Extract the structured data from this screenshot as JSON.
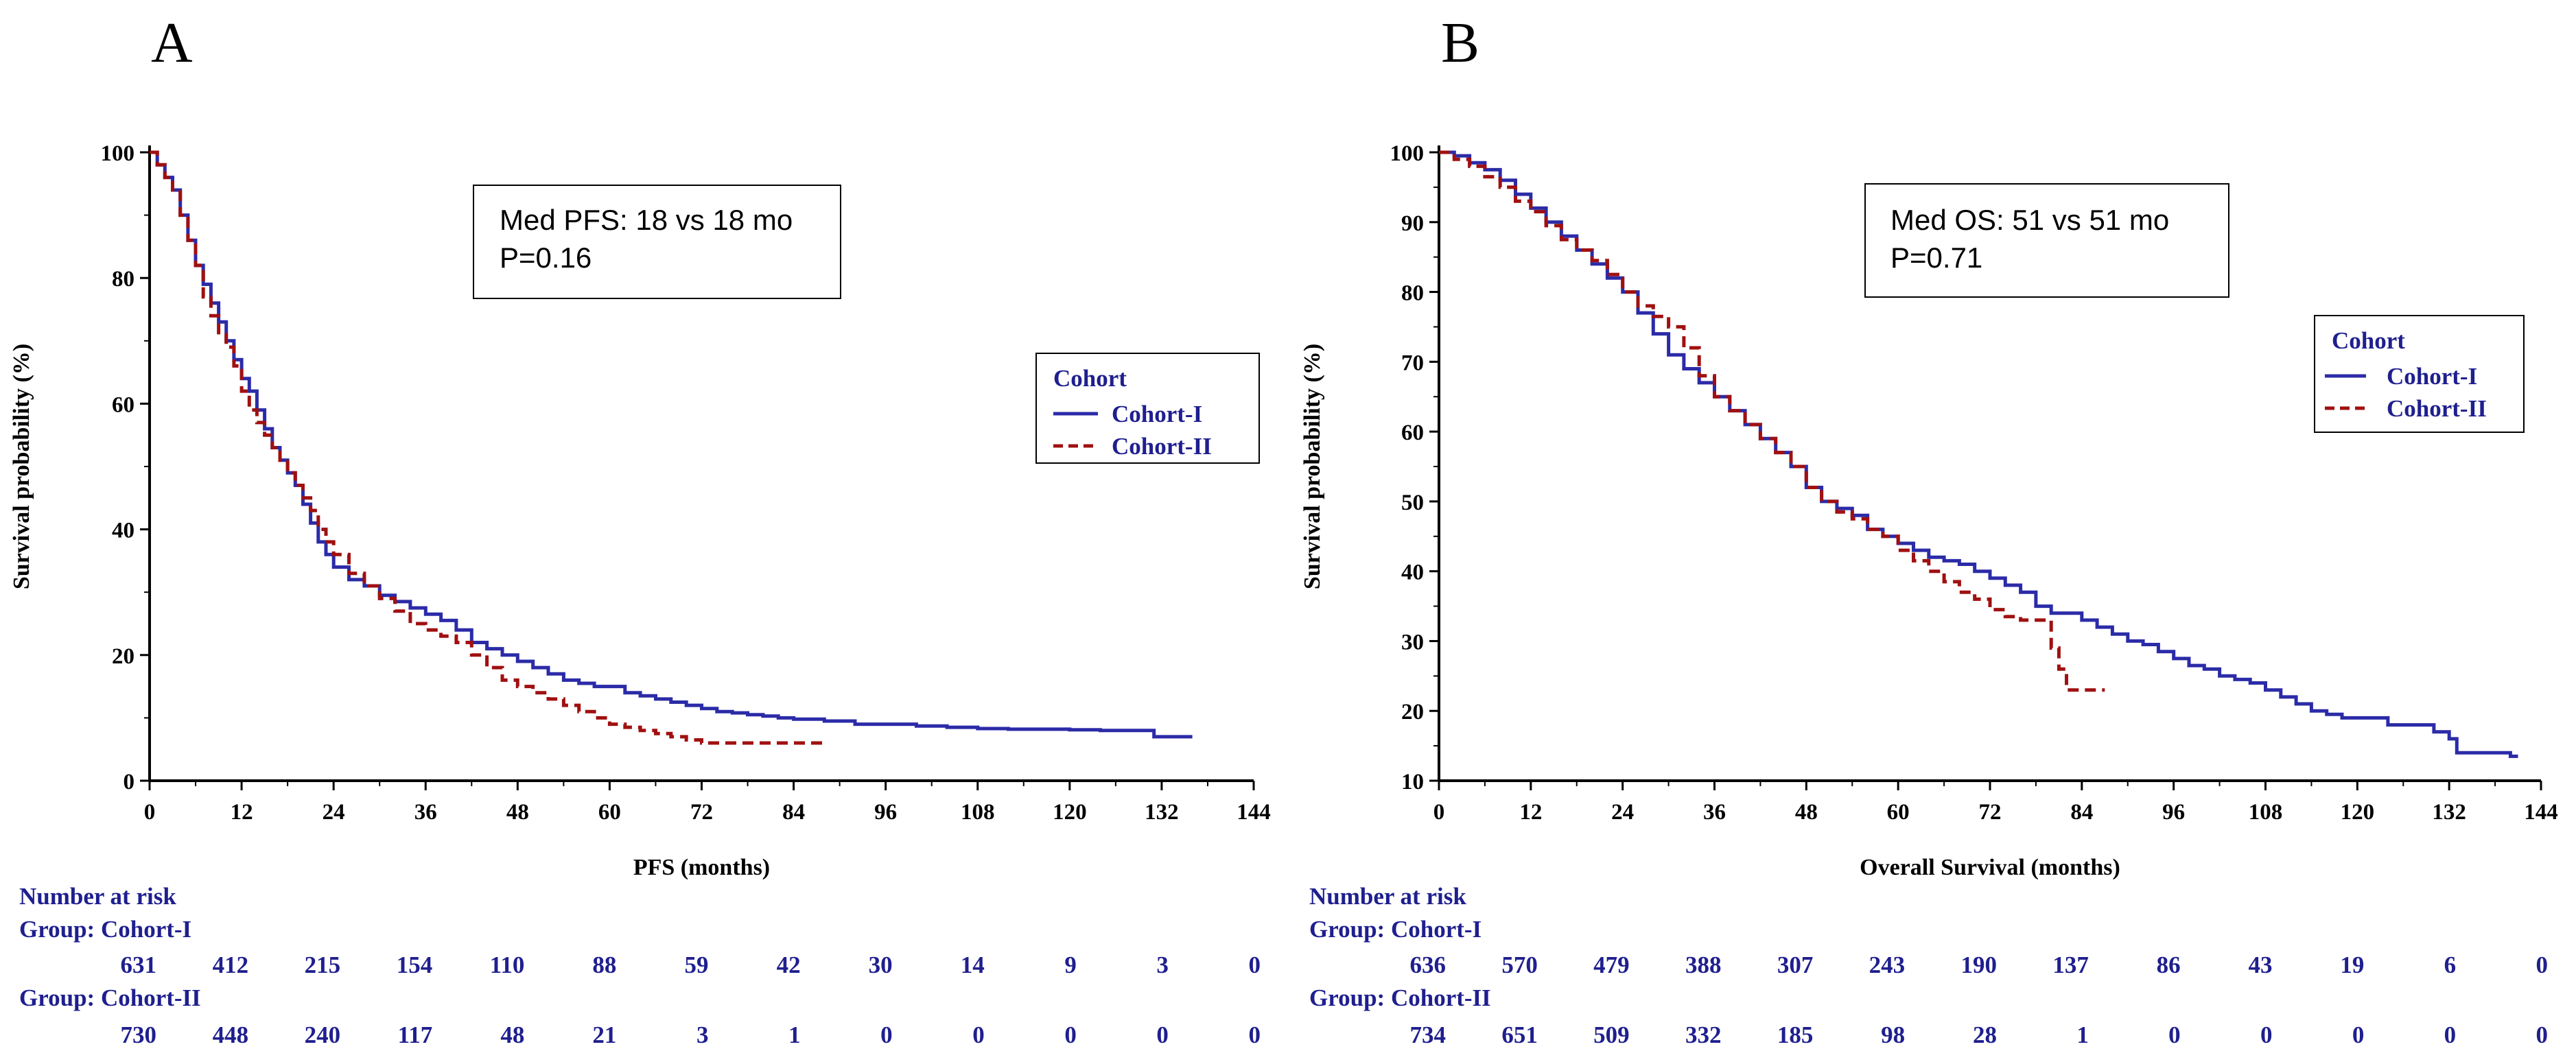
{
  "colors": {
    "cohort1": "#2b2ba8",
    "cohort2": "#a01010",
    "axis": "#000000",
    "risk_text": "#1f1f8f"
  },
  "chart_data": [
    {
      "panel": "A",
      "type": "line",
      "subtype": "kaplan-meier",
      "title": "",
      "xlabel": "PFS (months)",
      "ylabel": "Survival probability (%)",
      "xlim": [
        0,
        144
      ],
      "ylim": [
        0,
        100
      ],
      "xticks": [
        0,
        12,
        24,
        36,
        48,
        60,
        72,
        84,
        96,
        108,
        120,
        132,
        144
      ],
      "yticks": [
        0,
        20,
        40,
        60,
        80,
        100
      ],
      "annotation": {
        "lines": [
          "Med PFS: 18 vs 18 mo",
          "P=0.16"
        ]
      },
      "legend": {
        "title": "Cohort",
        "position": "right",
        "entries": [
          "Cohort-I",
          "Cohort-II"
        ]
      },
      "series": [
        {
          "name": "Cohort-I",
          "style": "solid",
          "x": [
            0,
            1,
            2,
            3,
            4,
            5,
            6,
            7,
            8,
            9,
            10,
            11,
            12,
            13,
            14,
            15,
            16,
            17,
            18,
            19,
            20,
            21,
            22,
            23,
            24,
            26,
            28,
            30,
            32,
            34,
            36,
            38,
            40,
            42,
            44,
            46,
            48,
            50,
            52,
            54,
            56,
            58,
            60,
            62,
            64,
            66,
            68,
            70,
            72,
            74,
            76,
            78,
            80,
            82,
            84,
            88,
            92,
            96,
            100,
            104,
            108,
            112,
            116,
            120,
            124,
            128,
            130,
            131,
            136
          ],
          "y": [
            100,
            98,
            96,
            94,
            90,
            86,
            82,
            79,
            76,
            73,
            70,
            67,
            64,
            62,
            59,
            56,
            53,
            51,
            49,
            47,
            44,
            41,
            38,
            36,
            34,
            32,
            31,
            29.5,
            28.5,
            27.5,
            26.5,
            25.5,
            24,
            22,
            21,
            20,
            19,
            18,
            17,
            16,
            15.5,
            15,
            15,
            14,
            13.5,
            13,
            12.5,
            12,
            11.5,
            11,
            10.8,
            10.5,
            10.3,
            10,
            9.8,
            9.5,
            9,
            9,
            8.7,
            8.5,
            8.3,
            8.2,
            8.2,
            8.1,
            8,
            8,
            8,
            7,
            7
          ]
        },
        {
          "name": "Cohort-II",
          "style": "dashed",
          "x": [
            0,
            1,
            2,
            3,
            4,
            5,
            6,
            7,
            8,
            9,
            10,
            11,
            12,
            13,
            14,
            15,
            16,
            17,
            18,
            19,
            20,
            21,
            22,
            23,
            24,
            26,
            28,
            30,
            32,
            34,
            36,
            38,
            40,
            42,
            44,
            46,
            48,
            50,
            52,
            54,
            56,
            58,
            60,
            62,
            64,
            66,
            68,
            70,
            72,
            76,
            80,
            84,
            88
          ],
          "y": [
            100,
            98,
            96,
            94,
            90,
            86,
            82,
            77,
            74,
            71,
            69,
            66,
            62,
            59,
            57,
            55,
            53,
            51,
            49,
            47,
            45,
            43,
            40,
            38,
            36,
            33,
            31,
            29,
            27,
            25,
            24,
            23,
            22,
            20,
            18,
            16,
            15,
            14,
            13,
            12,
            11,
            10,
            9,
            8.5,
            8,
            7.5,
            7,
            6.5,
            6,
            6,
            6,
            6,
            6
          ]
        }
      ],
      "risk_table": {
        "title": "Number at risk",
        "groups": [
          {
            "label": "Group: Cohort-I",
            "values": [
              631,
              412,
              215,
              154,
              110,
              88,
              59,
              42,
              30,
              14,
              9,
              3,
              0
            ]
          },
          {
            "label": "Group: Cohort-II",
            "values": [
              730,
              448,
              240,
              117,
              48,
              21,
              3,
              1,
              0,
              0,
              0,
              0,
              0
            ]
          }
        ]
      }
    },
    {
      "panel": "B",
      "type": "line",
      "subtype": "kaplan-meier",
      "title": "",
      "xlabel": "Overall Survival (months)",
      "ylabel": "Survival probability (%)",
      "xlim": [
        0,
        144
      ],
      "ylim": [
        10,
        100
      ],
      "xticks": [
        0,
        12,
        24,
        36,
        48,
        60,
        72,
        84,
        96,
        108,
        120,
        132,
        144
      ],
      "yticks": [
        10,
        20,
        30,
        40,
        50,
        60,
        70,
        80,
        90,
        100
      ],
      "annotation": {
        "lines": [
          "Med OS: 51  vs 51 mo",
          "P=0.71"
        ]
      },
      "legend": {
        "title": "Cohort",
        "position": "right",
        "entries": [
          "Cohort-I",
          "Cohort-II"
        ]
      },
      "series": [
        {
          "name": "Cohort-I",
          "style": "solid",
          "x": [
            0,
            2,
            4,
            6,
            8,
            10,
            12,
            14,
            16,
            18,
            20,
            22,
            24,
            26,
            28,
            30,
            32,
            34,
            36,
            38,
            40,
            42,
            44,
            46,
            48,
            50,
            52,
            54,
            56,
            58,
            60,
            62,
            64,
            66,
            68,
            70,
            72,
            74,
            76,
            78,
            80,
            82,
            84,
            86,
            88,
            90,
            92,
            94,
            96,
            98,
            100,
            102,
            104,
            106,
            108,
            110,
            112,
            114,
            116,
            118,
            120,
            122,
            124,
            126,
            128,
            130,
            132,
            133,
            136,
            140,
            141
          ],
          "y": [
            100,
            99.5,
            98.5,
            97.5,
            96,
            94,
            92,
            90,
            88,
            86,
            84,
            82,
            80,
            77,
            74,
            71,
            69,
            67,
            65,
            63,
            61,
            59,
            57,
            55,
            52,
            50,
            49,
            48,
            46,
            45,
            44,
            43,
            42,
            41.5,
            41,
            40,
            39,
            38,
            37,
            35,
            34,
            34,
            33,
            32,
            31,
            30,
            29.5,
            28.5,
            27.5,
            26.5,
            26,
            25,
            24.5,
            24,
            23,
            22,
            21,
            20,
            19.5,
            19,
            19,
            19,
            18,
            18,
            18,
            17,
            16,
            14,
            14,
            13.5,
            13.5
          ]
        },
        {
          "name": "Cohort-II",
          "style": "dashed",
          "x": [
            0,
            2,
            4,
            6,
            8,
            10,
            12,
            14,
            16,
            18,
            20,
            22,
            24,
            26,
            28,
            30,
            32,
            34,
            36,
            38,
            40,
            42,
            44,
            46,
            48,
            50,
            52,
            54,
            56,
            58,
            60,
            62,
            64,
            66,
            68,
            70,
            72,
            74,
            76,
            78,
            80,
            81,
            82,
            84,
            86,
            87
          ],
          "y": [
            100,
            99,
            98,
            96.5,
            95,
            93,
            91.5,
            89.5,
            87.5,
            86,
            84.5,
            82.5,
            80,
            78,
            76.5,
            75,
            72,
            68,
            65,
            63,
            61,
            59,
            57,
            55,
            52,
            50,
            48.5,
            47.5,
            46,
            45,
            43,
            41.5,
            40,
            38.5,
            37,
            36,
            34.5,
            33.5,
            33,
            33,
            29,
            26,
            23,
            23,
            23,
            23
          ]
        }
      ],
      "risk_table": {
        "title": "Number at risk",
        "groups": [
          {
            "label": "Group: Cohort-I",
            "values": [
              636,
              570,
              479,
              388,
              307,
              243,
              190,
              137,
              86,
              43,
              19,
              6,
              0
            ]
          },
          {
            "label": "Group: Cohort-II",
            "values": [
              734,
              651,
              509,
              332,
              185,
              98,
              28,
              1,
              0,
              0,
              0,
              0,
              0
            ]
          }
        ]
      }
    }
  ]
}
